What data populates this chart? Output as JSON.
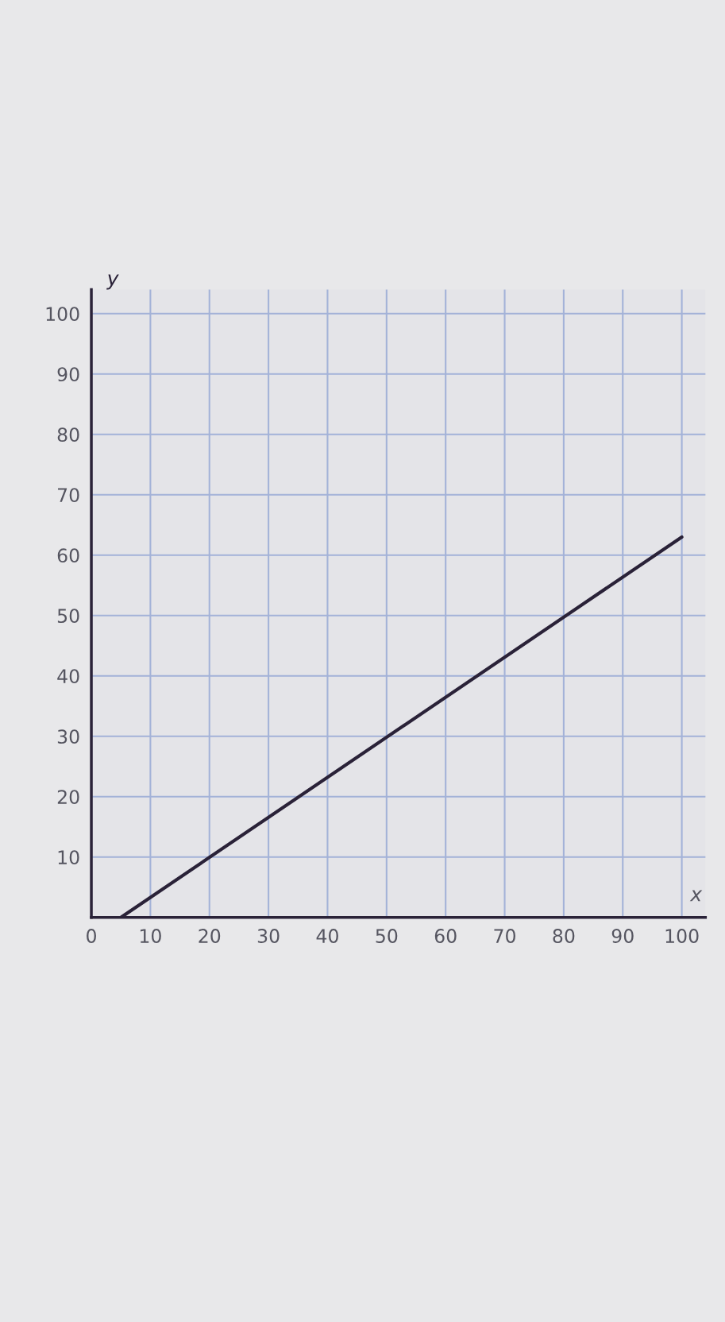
{
  "chart_data": {
    "type": "line",
    "xlabel": "x",
    "ylabel": "y",
    "x": [
      5,
      100
    ],
    "series": [
      {
        "color": "#2a2238",
        "values": [
          0,
          63
        ]
      }
    ],
    "xlim": [
      0,
      104
    ],
    "ylim": [
      0,
      104
    ],
    "xticks": [
      0,
      10,
      20,
      30,
      40,
      50,
      60,
      70,
      80,
      90,
      100
    ],
    "yticks": [
      10,
      20,
      30,
      40,
      50,
      60,
      70,
      80,
      90,
      100
    ],
    "grid": true,
    "marker": "none",
    "line_style": "solid"
  }
}
